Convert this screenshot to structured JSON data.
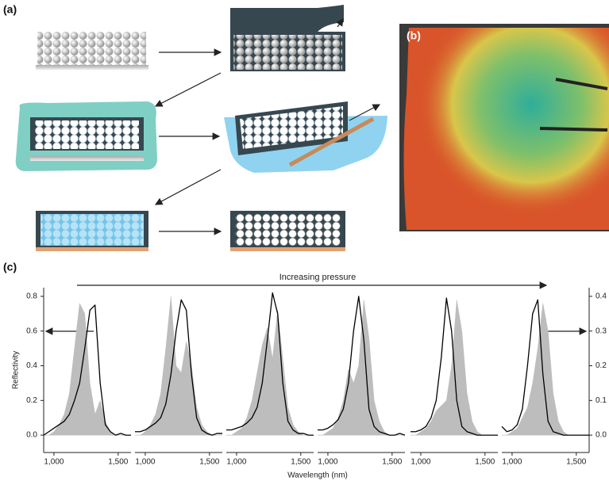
{
  "panel_labels": {
    "a": "(a)",
    "b": "(b)",
    "c": "(c)"
  },
  "chart_data": [
    {
      "type": "line",
      "ylabel": "Reflectivity",
      "xlabel": "Wavelength (nm)",
      "annotation": "Increasing pressure",
      "ylim": [
        -0.1,
        0.85
      ],
      "yticks": [
        {
          "value": 0,
          "label": "0.0"
        },
        0.2,
        0.4,
        0.6,
        0.8
      ],
      "xlim": [
        920,
        1600
      ],
      "xticks": [
        {
          "value": 1000,
          "label": "1,000"
        },
        {
          "value": 1500,
          "label": "1,500"
        }
      ],
      "x": [
        920,
        960,
        1000,
        1040,
        1080,
        1120,
        1160,
        1200,
        1240,
        1280,
        1320,
        1360,
        1400,
        1440,
        1480,
        1520,
        1560,
        1600
      ],
      "series": [
        {
          "color": "#bdbdbd",
          "fill": true,
          "axis": "y2",
          "values": [
            0,
            0,
            0.01,
            0.03,
            0.06,
            0.12,
            0.25,
            0.38,
            0.35,
            0.15,
            0.06,
            0.1,
            0.04,
            0.01,
            0,
            0,
            0,
            0
          ]
        },
        {
          "color": "#000000",
          "values": [
            0,
            0.02,
            0.04,
            0.06,
            0.08,
            0.12,
            0.2,
            0.3,
            0.5,
            0.72,
            0.75,
            0.3,
            0.06,
            0.02,
            0,
            0.01,
            0,
            0
          ]
        }
      ]
    },
    {
      "type": "line",
      "xlim": [
        920,
        1600
      ],
      "xticks": [
        {
          "value": 1000,
          "label": "1,000"
        },
        {
          "value": 1500,
          "label": "1,500"
        }
      ],
      "x": [
        920,
        960,
        1000,
        1040,
        1080,
        1120,
        1160,
        1200,
        1240,
        1280,
        1320,
        1360,
        1400,
        1440,
        1480,
        1520,
        1560,
        1600
      ],
      "series": [
        {
          "color": "#bdbdbd",
          "fill": true,
          "axis": "y2",
          "values": [
            0,
            0,
            0.01,
            0.03,
            0.06,
            0.12,
            0.25,
            0.4,
            0.2,
            0.18,
            0.27,
            0.2,
            0.08,
            0.03,
            0.01,
            0,
            0,
            0
          ]
        },
        {
          "color": "#000000",
          "values": [
            0.02,
            0.02,
            0.03,
            0.05,
            0.07,
            0.1,
            0.18,
            0.35,
            0.6,
            0.78,
            0.72,
            0.35,
            0.1,
            0.03,
            0.01,
            0,
            0.01,
            0.01
          ]
        }
      ]
    },
    {
      "type": "line",
      "xlim": [
        920,
        1600
      ],
      "xticks": [
        {
          "value": 1000,
          "label": "1,000"
        },
        {
          "value": 1500,
          "label": "1,500"
        }
      ],
      "x": [
        920,
        960,
        1000,
        1040,
        1080,
        1120,
        1160,
        1200,
        1240,
        1280,
        1320,
        1360,
        1400,
        1440,
        1480,
        1520,
        1560,
        1600
      ],
      "series": [
        {
          "color": "#bdbdbd",
          "fill": true,
          "axis": "y2",
          "values": [
            0,
            0,
            0.01,
            0.02,
            0.05,
            0.1,
            0.18,
            0.26,
            0.31,
            0.22,
            0.36,
            0.22,
            0.08,
            0.03,
            0.01,
            0,
            0,
            0
          ]
        },
        {
          "color": "#000000",
          "values": [
            0.03,
            0.03,
            0.04,
            0.05,
            0.07,
            0.1,
            0.16,
            0.3,
            0.55,
            0.82,
            0.7,
            0.3,
            0.08,
            0.03,
            0.01,
            0.01,
            0,
            0
          ]
        }
      ]
    },
    {
      "type": "line",
      "xlim": [
        920,
        1600
      ],
      "xticks": [
        {
          "value": 1000,
          "label": "1,000"
        },
        {
          "value": 1500,
          "label": "1,500"
        }
      ],
      "x": [
        920,
        960,
        1000,
        1040,
        1080,
        1120,
        1160,
        1200,
        1240,
        1280,
        1320,
        1360,
        1400,
        1440,
        1480,
        1520,
        1560,
        1600
      ],
      "series": [
        {
          "color": "#bdbdbd",
          "fill": true,
          "axis": "y2",
          "values": [
            0,
            0,
            0.01,
            0.02,
            0.05,
            0.1,
            0.19,
            0.15,
            0.2,
            0.39,
            0.28,
            0.1,
            0.04,
            0.01,
            0,
            0,
            0,
            0
          ]
        },
        {
          "color": "#000000",
          "values": [
            0.03,
            0.03,
            0.04,
            0.06,
            0.09,
            0.15,
            0.3,
            0.6,
            0.8,
            0.55,
            0.15,
            0.05,
            0.02,
            0.01,
            0,
            0,
            0.01,
            0
          ]
        }
      ]
    },
    {
      "type": "line",
      "xlim": [
        920,
        1600
      ],
      "xticks": [
        {
          "value": 1000,
          "label": "1,000"
        },
        {
          "value": 1500,
          "label": "1,500"
        }
      ],
      "x": [
        920,
        960,
        1000,
        1040,
        1080,
        1120,
        1160,
        1200,
        1240,
        1280,
        1320,
        1360,
        1400,
        1440,
        1480,
        1520,
        1560,
        1600
      ],
      "series": [
        {
          "color": "#bdbdbd",
          "fill": true,
          "axis": "y2",
          "values": [
            0,
            0,
            0.01,
            0.02,
            0.04,
            0.07,
            0.085,
            0.1,
            0.2,
            0.39,
            0.3,
            0.12,
            0.04,
            0.01,
            0,
            0,
            0,
            0
          ]
        },
        {
          "color": "#000000",
          "values": [
            0.02,
            0.02,
            0.03,
            0.05,
            0.1,
            0.2,
            0.45,
            0.79,
            0.6,
            0.2,
            0.05,
            0.02,
            0.01,
            0,
            0,
            0,
            0,
            0
          ]
        }
      ]
    },
    {
      "type": "line",
      "y2lim": [
        -0.05,
        0.425
      ],
      "y2ticks": [
        {
          "value": 0,
          "label": "0.0"
        },
        0.1,
        0.2,
        0.3,
        0.4
      ],
      "xlim": [
        920,
        1600
      ],
      "xticks": [
        {
          "value": 1000,
          "label": "1,000"
        },
        {
          "value": 1500,
          "label": "1,500"
        }
      ],
      "x": [
        920,
        960,
        1000,
        1040,
        1080,
        1120,
        1160,
        1200,
        1240,
        1280,
        1320,
        1360,
        1400,
        1440,
        1480,
        1520,
        1560,
        1600
      ],
      "series": [
        {
          "color": "#bdbdbd",
          "fill": true,
          "axis": "y2",
          "values": [
            0,
            0,
            0.01,
            0.02,
            0.05,
            0.08,
            0.15,
            0.25,
            0.38,
            0.3,
            0.12,
            0.04,
            0.01,
            0,
            0,
            0,
            0,
            0
          ]
        },
        {
          "color": "#000000",
          "values": [
            0.05,
            0.02,
            0.03,
            0.06,
            0.15,
            0.4,
            0.7,
            0.78,
            0.35,
            0.08,
            0.02,
            0.01,
            0,
            0,
            0,
            0,
            0,
            0
          ]
        }
      ]
    }
  ]
}
